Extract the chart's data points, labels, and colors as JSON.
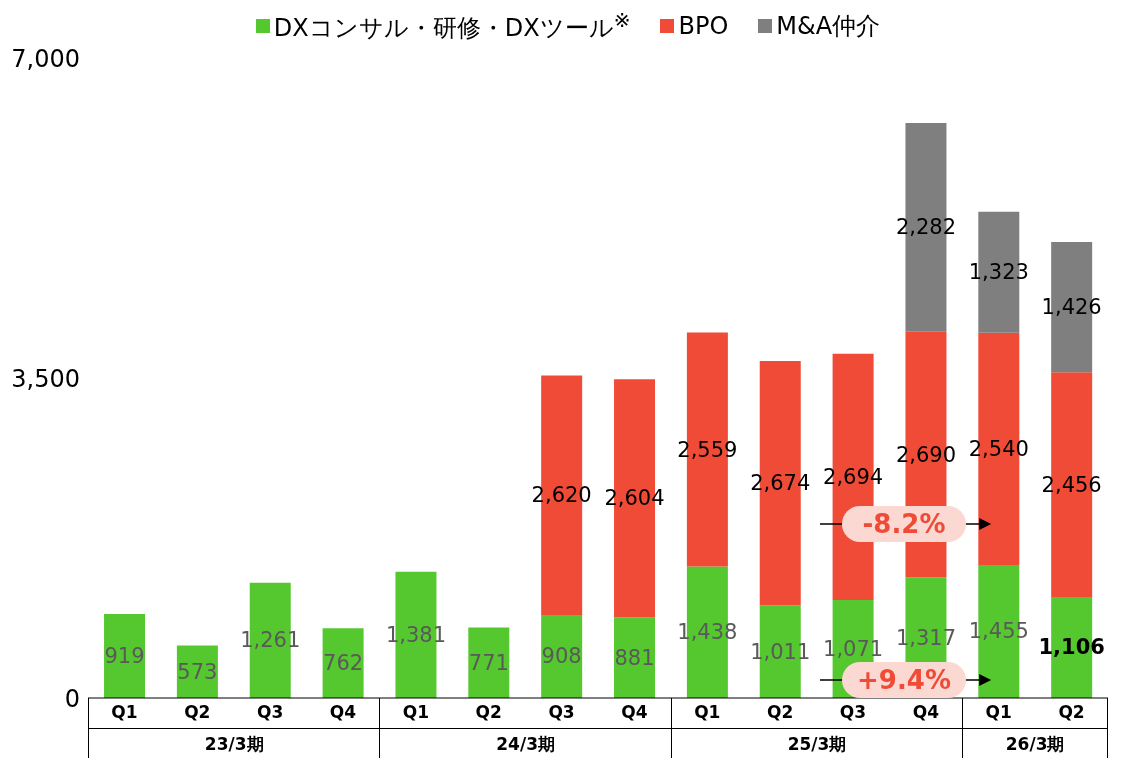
{
  "chart_data": {
    "type": "bar",
    "stacked": true,
    "categories": [
      "Q1",
      "Q2",
      "Q3",
      "Q4",
      "Q1",
      "Q2",
      "Q3",
      "Q4",
      "Q1",
      "Q2",
      "Q3",
      "Q4",
      "Q1",
      "Q2"
    ],
    "series": [
      {
        "name": "DXコンサル・研修・DXツール$^{※}$",
        "color": "#56c82f",
        "values": [
          919,
          573,
          1261,
          762,
          1381,
          771,
          908,
          881,
          1438,
          1011,
          1071,
          1317,
          1455,
          1106
        ],
        "value_labels": [
          "919",
          "573",
          "1,261",
          "762",
          "1,381",
          "771",
          "908",
          "881",
          "1,438",
          "1,011",
          "1,071",
          "1,317",
          "1,455",
          "1,106"
        ]
      },
      {
        "name": "BPO",
        "color": "#f04b37",
        "values": [
          null,
          null,
          null,
          null,
          null,
          null,
          2620,
          2604,
          2559,
          2674,
          2694,
          2690,
          2540,
          2456
        ],
        "value_labels": [
          null,
          null,
          null,
          null,
          null,
          null,
          "2,620",
          "2,604",
          "2,559",
          "2,674",
          "2,694",
          "2,690",
          "2,540",
          "2,456"
        ]
      },
      {
        "name": "M&A仲介",
        "color": "#7f7f7f",
        "values": [
          null,
          null,
          null,
          null,
          null,
          null,
          null,
          null,
          null,
          null,
          null,
          2282,
          1323,
          1426
        ],
        "value_labels": [
          null,
          null,
          null,
          null,
          null,
          null,
          null,
          null,
          null,
          null,
          null,
          "2,282",
          "1,323",
          "1,426"
        ]
      }
    ],
    "ylim": [
      0,
      7000
    ],
    "yticks": [
      {
        "value": 0,
        "label": "0"
      },
      {
        "value": 3500,
        "label": "3,500"
      },
      {
        "value": 7000,
        "label": "7,000"
      }
    ],
    "grid": false,
    "legend": "top",
    "annotations": [
      "23/3期",
      "24/3期",
      "25/3期",
      "26/3期",
      {
        "text": "-8.2%",
        "y": 1900
      },
      {
        "text": "+9.4%",
        "y": 200
      }
    ]
  }
}
